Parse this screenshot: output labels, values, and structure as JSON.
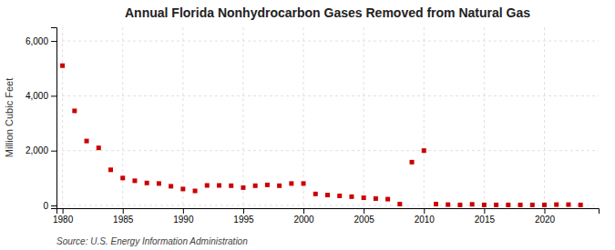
{
  "chart_data": {
    "type": "scatter",
    "title": "Annual Florida Nonhydrocarbon Gases Removed from Natural Gas",
    "ylabel": "Million Cubic Feet",
    "annotations": [
      "Source: U.S. Energy Information Administration"
    ],
    "x": [
      1980,
      1981,
      1982,
      1983,
      1984,
      1985,
      1986,
      1987,
      1988,
      1989,
      1990,
      1991,
      1992,
      1993,
      1994,
      1995,
      1996,
      1997,
      1998,
      1999,
      2000,
      2001,
      2002,
      2003,
      2004,
      2005,
      2006,
      2007,
      2008,
      2009,
      2010,
      2011,
      2012,
      2013,
      2014,
      2015,
      2016,
      2017,
      2018,
      2019,
      2020,
      2021,
      2022,
      2023
    ],
    "values": [
      5100,
      3450,
      2350,
      2100,
      1300,
      1000,
      900,
      820,
      800,
      700,
      600,
      530,
      730,
      730,
      720,
      650,
      720,
      750,
      720,
      800,
      800,
      420,
      380,
      350,
      320,
      280,
      250,
      230,
      50,
      1580,
      2000,
      50,
      30,
      20,
      40,
      20,
      20,
      20,
      20,
      20,
      20,
      30,
      30,
      20
    ],
    "color": "#cc0000",
    "marker": "square",
    "xlim": [
      1979.5,
      2024.5
    ],
    "ylim": [
      -100,
      6500
    ],
    "xticks": [
      1980,
      1985,
      1990,
      1995,
      2000,
      2005,
      2010,
      2015,
      2020
    ],
    "yticks": [
      0,
      {
        "value": 2000,
        "label": "2,000"
      },
      {
        "value": 4000,
        "label": "4,000"
      },
      {
        "value": 6000,
        "label": "6,000"
      }
    ],
    "grid": true
  }
}
